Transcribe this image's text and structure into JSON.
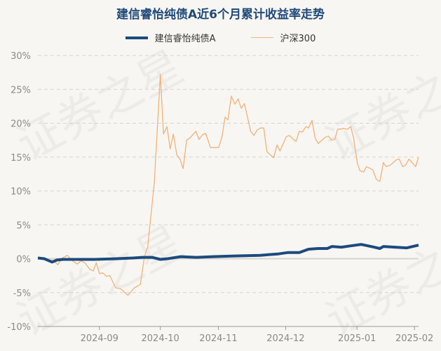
{
  "watermark": "证券之星",
  "chart_data": {
    "type": "line",
    "title": "建信睿怡纯债A近6个月累计收益率走势",
    "xlabel": "",
    "ylabel": "",
    "ylim": [
      -10,
      30
    ],
    "xlim": [
      0,
      120
    ],
    "grid": true,
    "legend_placement": "top-center",
    "y_ticks": [
      30,
      25,
      20,
      15,
      10,
      5,
      0,
      -5,
      -10
    ],
    "y_tick_labels": [
      "30%",
      "25%",
      "20%",
      "15%",
      "10%",
      "5%",
      "0%",
      "-5%",
      "-10%"
    ],
    "x_ticks": [
      {
        "x": 19.4,
        "label": "2024-09"
      },
      {
        "x": 38.6,
        "label": "2024-10"
      },
      {
        "x": 56.9,
        "label": "2024-11"
      },
      {
        "x": 78.1,
        "label": "2024-12"
      },
      {
        "x": 100.6,
        "label": "2025-01"
      },
      {
        "x": 118.7,
        "label": "2025-02"
      }
    ],
    "series": [
      {
        "name": "建信睿怡纯债A",
        "color": "#1c4a7e",
        "x": [
          0,
          2,
          4.5,
          6,
          8,
          12,
          18,
          25,
          30,
          33,
          36,
          38.6,
          41,
          45,
          50,
          55,
          62,
          70,
          75.8,
          78.7,
          82.4,
          85.3,
          88.3,
          91.2,
          92.7,
          95.7,
          98.6,
          101.9,
          103,
          106,
          107.8,
          108.9,
          112.6,
          116.3,
          120
        ],
        "y": [
          0.1,
          0.0,
          -0.5,
          -0.2,
          -0.1,
          -0.1,
          -0.1,
          0.0,
          0.1,
          0.2,
          0.2,
          -0.1,
          0.0,
          0.3,
          0.2,
          0.3,
          0.4,
          0.5,
          0.7,
          0.9,
          0.9,
          1.4,
          1.5,
          1.5,
          1.8,
          1.7,
          1.9,
          2.1,
          2.0,
          1.7,
          1.5,
          1.8,
          1.7,
          1.6,
          2.0
        ]
      },
      {
        "name": "沪深300",
        "color": "#f0b27a",
        "x": [
          0,
          2.8,
          5.0,
          6.3,
          7.4,
          9.3,
          10.9,
          12.4,
          13.7,
          15.0,
          16.4,
          17.5,
          18.4,
          19.4,
          20.5,
          21.6,
          22.7,
          24.5,
          26.0,
          28.4,
          30.4,
          32.3,
          33.6,
          34.6,
          36.7,
          38.6,
          39.6,
          40.7,
          41.7,
          42.7,
          43.8,
          44.8,
          45.8,
          46.9,
          47.9,
          49.8,
          50.8,
          51.9,
          52.9,
          54.4,
          57.0,
          58.1,
          59.0,
          59.9,
          61.0,
          62.1,
          63.1,
          64.1,
          65.1,
          67.1,
          68.1,
          69.1,
          70.2,
          71.2,
          72.2,
          74.3,
          75.4,
          76.3,
          78.3,
          79.3,
          80.3,
          81.4,
          82.4,
          83.4,
          84.5,
          85.3,
          86.4,
          87.4,
          88.4,
          90.5,
          91.6,
          92.6,
          93.6,
          94.5,
          96.5,
          97.6,
          98.6,
          99.5,
          100.7,
          101.5,
          102.7,
          103.6,
          105.6,
          106.7,
          107.8,
          108.9,
          109.8,
          111.1,
          113.0,
          113.9,
          115.0,
          115.9,
          117.0,
          119.1,
          120
        ],
        "y": [
          0,
          -0.2,
          -0.3,
          -0.9,
          0,
          0.5,
          -0.3,
          -0.8,
          -0.3,
          -0.7,
          -1.6,
          -1.8,
          -0.6,
          -2.2,
          -2.1,
          -2.6,
          -2.5,
          -4.3,
          -4.4,
          -5.4,
          -4.3,
          -3.8,
          0.3,
          1.7,
          11.2,
          27.2,
          18.4,
          19.5,
          16.2,
          18.4,
          15.3,
          14.7,
          13.3,
          17.5,
          17.8,
          18.8,
          17.6,
          18.3,
          18.5,
          16.4,
          16.4,
          18.1,
          20.9,
          20.5,
          24.0,
          22.8,
          23.6,
          22.2,
          22.9,
          18.8,
          18.2,
          19.0,
          19.3,
          19.3,
          15.8,
          14.9,
          16.8,
          15.9,
          18.0,
          18.2,
          17.7,
          17.3,
          18.8,
          18.7,
          19.5,
          19.3,
          20.4,
          17.8,
          17.0,
          17.9,
          18.1,
          17.5,
          17.6,
          19.1,
          19.2,
          19.1,
          19.5,
          17.9,
          14.1,
          13.0,
          12.8,
          13.6,
          13.1,
          11.7,
          11.4,
          14.2,
          13.6,
          13.8,
          14.6,
          14.7,
          13.6,
          13.8,
          14.7,
          13.6,
          15.0
        ]
      }
    ]
  }
}
